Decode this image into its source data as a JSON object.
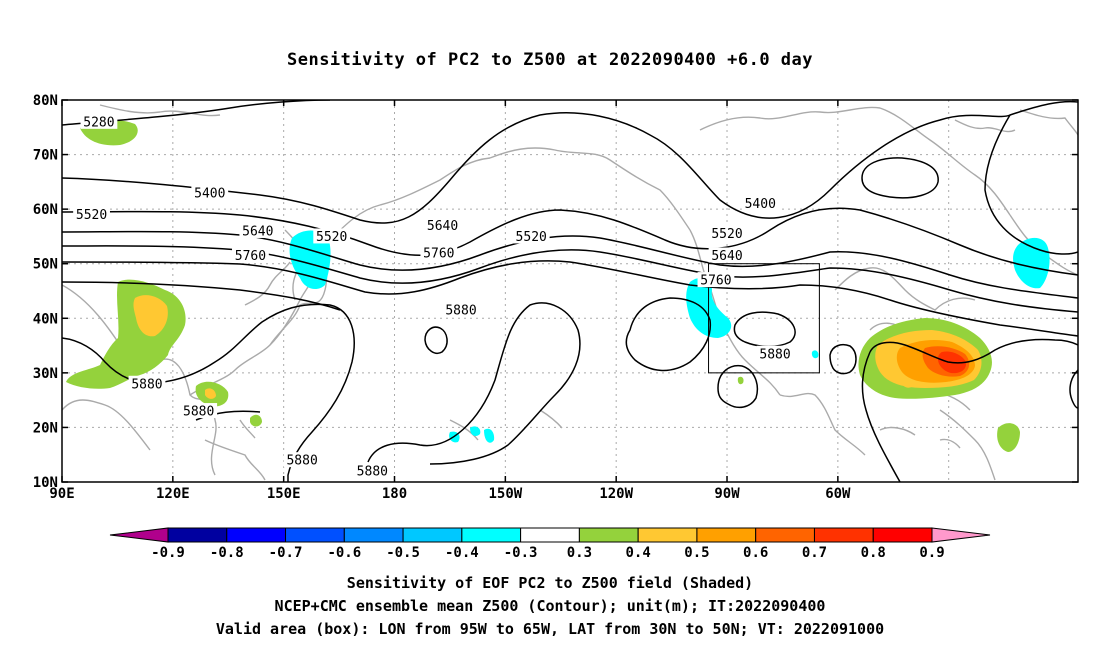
{
  "title": "Sensitivity of PC2 to Z500 at 2022090400 +6.0 day",
  "lat_ticks": [
    "80N",
    "70N",
    "60N",
    "50N",
    "40N",
    "30N",
    "20N",
    "10N"
  ],
  "lon_ticks": [
    "90E",
    "120E",
    "150E",
    "180",
    "150W",
    "120W",
    "90W",
    "60W"
  ],
  "contour_labels": [
    {
      "text": "5280",
      "lon": 100,
      "lat": 76
    },
    {
      "text": "5400",
      "lon": 130,
      "lat": 63
    },
    {
      "text": "5520",
      "lon": 98,
      "lat": 59
    },
    {
      "text": "5520",
      "lon": 163,
      "lat": 55
    },
    {
      "text": "5520",
      "lon": -143,
      "lat": 55
    },
    {
      "text": "5520",
      "lon": -90,
      "lat": 55.5
    },
    {
      "text": "5400",
      "lon": -81,
      "lat": 61
    },
    {
      "text": "5640",
      "lon": 143,
      "lat": 56
    },
    {
      "text": "5640",
      "lon": -167,
      "lat": 57
    },
    {
      "text": "5640",
      "lon": -90,
      "lat": 51.5
    },
    {
      "text": "5760",
      "lon": 141,
      "lat": 51.5
    },
    {
      "text": "5760",
      "lon": -168,
      "lat": 52
    },
    {
      "text": "5760",
      "lon": -93,
      "lat": 47
    },
    {
      "text": "5880",
      "lon": -162,
      "lat": 41.5
    },
    {
      "text": "5880",
      "lon": -77,
      "lat": 33.5
    },
    {
      "text": "5880",
      "lon": 113,
      "lat": 28
    },
    {
      "text": "5880",
      "lon": 127,
      "lat": 23
    },
    {
      "text": "5880",
      "lon": 155,
      "lat": 14
    },
    {
      "text": "5880",
      "lon": 174,
      "lat": 12
    }
  ],
  "valid_box": {
    "lon_west": -95,
    "lon_east": -65,
    "lat_south": 30,
    "lat_north": 50
  },
  "colorbar": {
    "colors": [
      "#b0008c",
      "#0000a0",
      "#0000ff",
      "#0050ff",
      "#0088ff",
      "#00c8ff",
      "#00ffff",
      "#ffffff",
      "#94d23c",
      "#ffc832",
      "#ffa000",
      "#ff6400",
      "#ff3200",
      "#ff0000",
      "#ff99cc"
    ],
    "labels": [
      "-0.9",
      "-0.8",
      "-0.7",
      "-0.6",
      "-0.5",
      "-0.4",
      "-0.3",
      "0.3",
      "0.4",
      "0.5",
      "0.6",
      "0.7",
      "0.8",
      "0.9"
    ]
  },
  "captions": [
    "Sensitivity of EOF PC2 to Z500 field (Shaded)",
    "NCEP+CMC ensemble mean Z500 (Contour); unit(m); IT:2022090400",
    "Valid area (box): LON from 95W to 65W, LAT from 30N to 50N; VT: 2022091000"
  ]
}
